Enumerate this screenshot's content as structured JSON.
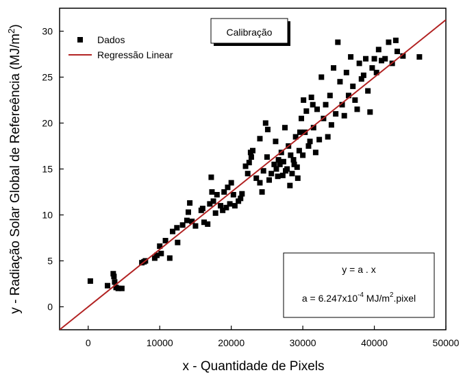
{
  "chart_data": {
    "type": "scatter",
    "title": "Calibração",
    "xlabel": "x - Quantidade de Pixels",
    "ylabel": [
      {
        "text": "y - Radiação Solar Global de Refereência (MJ/m"
      },
      {
        "text": "2",
        "sup": true
      },
      {
        "text": ")"
      }
    ],
    "annotations": [
      [
        {
          "text": "y = a . x"
        }
      ],
      [
        {
          "text": "a = 6.247x10"
        },
        {
          "text": "-4",
          "sup": true
        },
        {
          "text": " MJ/m"
        },
        {
          "text": "2",
          "sup": true
        },
        {
          "text": ".pixel"
        }
      ]
    ],
    "xlim": [
      -4000,
      50000
    ],
    "ylim": [
      -2.5,
      32.5
    ],
    "xticks": [
      0,
      10000,
      20000,
      30000,
      40000,
      50000
    ],
    "yticks": [
      0,
      5,
      10,
      15,
      20,
      25,
      30
    ],
    "legend": "upper-left",
    "series": [
      {
        "name": "Dados",
        "color": "#000000",
        "mode": "markers",
        "x": [
          300,
          2700,
          3500,
          3600,
          3700,
          3900,
          4200,
          4700,
          7500,
          7800,
          8000,
          9300,
          9600,
          10000,
          10200,
          10800,
          11400,
          11800,
          12400,
          12500,
          13200,
          13800,
          14000,
          14200,
          14500,
          15000,
          15800,
          16000,
          16200,
          16700,
          17000,
          17200,
          17300,
          17500,
          17800,
          18000,
          18500,
          18800,
          19000,
          19300,
          19500,
          19800,
          20000,
          20300,
          20500,
          21000,
          21300,
          21500,
          22000,
          22300,
          22500,
          22700,
          22800,
          23000,
          23500,
          24000,
          24000,
          24300,
          24500,
          24800,
          25000,
          25100,
          25300,
          25600,
          26000,
          26200,
          26300,
          26500,
          26600,
          26800,
          27000,
          27200,
          27300,
          27500,
          27600,
          27800,
          28000,
          28200,
          28300,
          28500,
          28700,
          28800,
          29000,
          29200,
          29300,
          29500,
          29600,
          29800,
          30000,
          30100,
          30300,
          30500,
          30800,
          31000,
          31200,
          31400,
          31500,
          31800,
          32000,
          32300,
          32600,
          32900,
          33200,
          33500,
          33800,
          34000,
          34300,
          34600,
          34900,
          35200,
          35500,
          35800,
          36100,
          36400,
          36700,
          37000,
          37300,
          37600,
          37900,
          38200,
          38500,
          38800,
          39100,
          39400,
          39700,
          40000,
          40300,
          40600,
          41000,
          41500,
          42000,
          42500,
          43000,
          43200,
          44000,
          46300
        ],
        "values": [
          2.8,
          2.3,
          3.6,
          3.3,
          2.7,
          2.1,
          2.0,
          2.0,
          4.8,
          4.9,
          5.0,
          5.3,
          5.6,
          6.6,
          5.8,
          7.2,
          5.3,
          8.2,
          8.6,
          7.0,
          8.9,
          9.4,
          10.3,
          11.3,
          9.3,
          8.8,
          10.5,
          10.7,
          9.2,
          9.0,
          11.2,
          14.1,
          12.5,
          11.5,
          10.2,
          12.2,
          11.0,
          10.5,
          12.5,
          10.8,
          13.0,
          11.2,
          13.5,
          12.2,
          11.0,
          11.5,
          11.8,
          12.3,
          15.3,
          14.5,
          15.7,
          16.8,
          16.3,
          17.0,
          14.0,
          13.5,
          18.3,
          12.5,
          14.8,
          20.0,
          16.3,
          19.3,
          13.8,
          14.5,
          15.5,
          18.0,
          15.0,
          14.2,
          16.0,
          15.5,
          16.8,
          14.3,
          15.8,
          19.5,
          14.8,
          15.0,
          17.5,
          13.2,
          16.5,
          14.5,
          16.0,
          15.5,
          18.5,
          15.2,
          14.0,
          17.0,
          19.0,
          20.5,
          16.5,
          22.5,
          19.0,
          21.3,
          17.5,
          18.0,
          22.8,
          22.0,
          19.5,
          16.8,
          21.5,
          18.2,
          25.0,
          20.5,
          22.0,
          18.5,
          23.0,
          19.8,
          26.0,
          21.0,
          28.8,
          24.5,
          22.0,
          20.8,
          25.5,
          23.0,
          27.2,
          24.0,
          22.5,
          21.5,
          26.5,
          24.8,
          25.2,
          27.0,
          23.5,
          21.2,
          26.0,
          27.0,
          25.5,
          28.0,
          26.8,
          27.0,
          28.8,
          26.5,
          29.0,
          27.8,
          27.3,
          27.2
        ]
      },
      {
        "name": "Regressão Linear",
        "color": "#b22222",
        "mode": "line",
        "x": [
          -4000,
          50000
        ],
        "values": [
          -2.499,
          31.235
        ]
      }
    ]
  }
}
